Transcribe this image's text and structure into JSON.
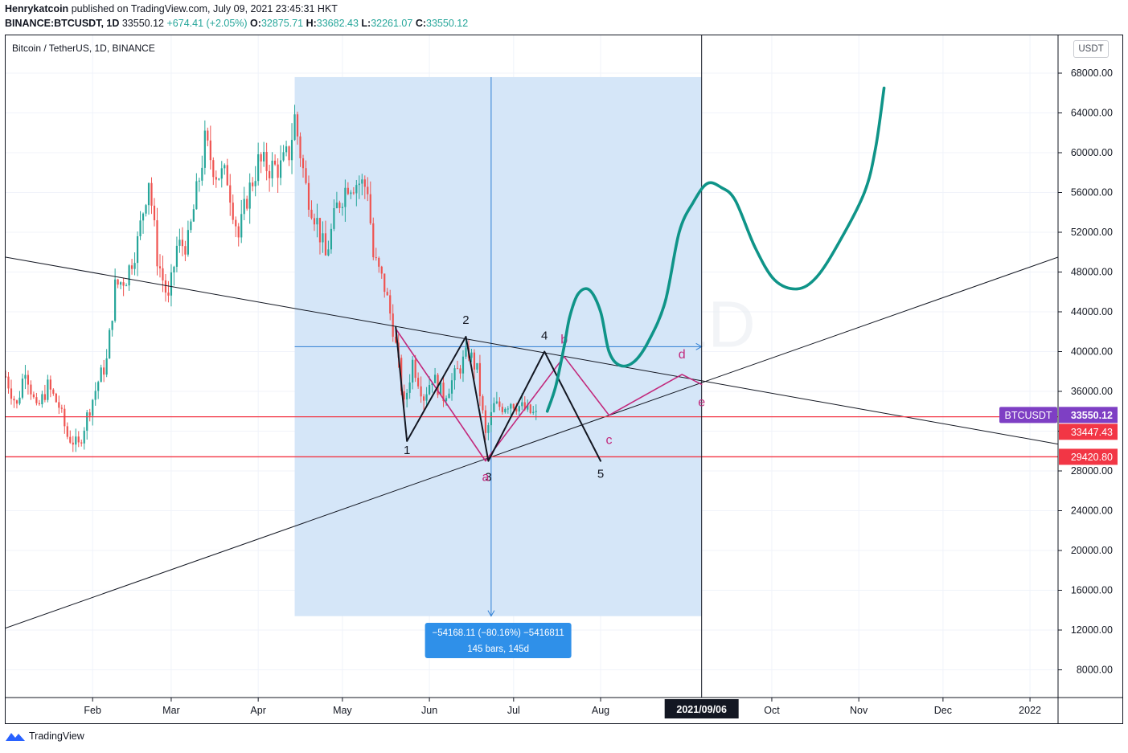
{
  "header": {
    "author": "Henrykatcoin",
    "published": "published on TradingView.com, July 09, 2021 23:45:31 HKT",
    "symbol": "BINANCE:BTCUSDT, 1D",
    "last": "33550.12",
    "change": "+674.41 (+2.05%)",
    "open_label": "O:",
    "open": "32875.71",
    "high_label": "H:",
    "high": "33682.43",
    "low_label": "L:",
    "low": "32261.07",
    "close_label": "C:",
    "close": "33550.12"
  },
  "legend": "Bitcoin / TetherUS, 1D, BINANCE",
  "currency": "USDT",
  "watermark": {
    "big": "BTCUSDT, 1D",
    "small": "Bitcoin / TetherUS"
  },
  "branding": "TradingView",
  "colors": {
    "up": "#26a69a",
    "down": "#ef5350",
    "teal": "#0f9488",
    "magenta": "#c2297c",
    "red_line": "#f23645",
    "range_fill": "#d3e5f8",
    "range_line": "#2f7fd4",
    "label_purple": "#7e3fc4",
    "label_red": "#f23645"
  },
  "chart_data": {
    "type": "candlestick",
    "title": "Bitcoin / TetherUS, 1D, BINANCE",
    "ylabel": "USDT",
    "ylim": [
      4000,
      72000
    ],
    "y_ticks": [
      "68000.00",
      "64000.00",
      "60000.00",
      "56000.00",
      "52000.00",
      "48000.00",
      "44000.00",
      "40000.00",
      "36000.00",
      "32000.00",
      "28000.00",
      "24000.00",
      "20000.00",
      "16000.00",
      "12000.00",
      "8000.00"
    ],
    "x_ticks": [
      "Feb",
      "Mar",
      "Apr",
      "May",
      "Jun",
      "Jul",
      "Aug",
      "Oct",
      "Nov",
      "Dec",
      "2022"
    ],
    "x_ticks_dates": [
      "2021-02-01",
      "2021-03-01",
      "2021-04-01",
      "2021-05-01",
      "2021-06-01",
      "2021-07-01",
      "2021-08-01",
      "2021-10-01",
      "2021-11-01",
      "2021-12-01",
      "2022-01-01"
    ],
    "xlim": [
      "2021-01-01",
      "2022-01-11"
    ],
    "crosshair_date_label": "2021/09/06",
    "crosshair_date": "2021-09-06",
    "close_series": [
      [
        "2021-01-01",
        37500
      ],
      [
        "2021-01-05",
        34500
      ],
      [
        "2021-01-08",
        38500
      ],
      [
        "2021-01-12",
        34000
      ],
      [
        "2021-01-16",
        36500
      ],
      [
        "2021-01-20",
        34500
      ],
      [
        "2021-01-23",
        31500
      ],
      [
        "2021-01-27",
        30500
      ],
      [
        "2021-01-30",
        33500
      ],
      [
        "2021-02-03",
        37000
      ],
      [
        "2021-02-06",
        39000
      ],
      [
        "2021-02-09",
        46500
      ],
      [
        "2021-02-13",
        47500
      ],
      [
        "2021-02-17",
        51000
      ],
      [
        "2021-02-21",
        57500
      ],
      [
        "2021-02-24",
        49500
      ],
      [
        "2021-02-28",
        45000
      ],
      [
        "2021-03-03",
        50500
      ],
      [
        "2021-03-07",
        51000
      ],
      [
        "2021-03-11",
        57500
      ],
      [
        "2021-03-13",
        61000
      ],
      [
        "2021-03-17",
        58000
      ],
      [
        "2021-03-21",
        57500
      ],
      [
        "2021-03-25",
        51500
      ],
      [
        "2021-03-28",
        55500
      ],
      [
        "2021-04-01",
        59000
      ],
      [
        "2021-04-05",
        58500
      ],
      [
        "2021-04-09",
        58500
      ],
      [
        "2021-04-12",
        60000
      ],
      [
        "2021-04-14",
        63500
      ],
      [
        "2021-04-18",
        56500
      ],
      [
        "2021-04-22",
        53000
      ],
      [
        "2021-04-25",
        49500
      ],
      [
        "2021-04-29",
        54500
      ],
      [
        "2021-05-03",
        57000
      ],
      [
        "2021-05-07",
        57000
      ],
      [
        "2021-05-10",
        56500
      ],
      [
        "2021-05-12",
        49500
      ],
      [
        "2021-05-16",
        46500
      ],
      [
        "2021-05-19",
        42500
      ],
      [
        "2021-05-23",
        34500
      ],
      [
        "2021-05-26",
        39000
      ],
      [
        "2021-05-30",
        35500
      ],
      [
        "2021-06-02",
        37500
      ],
      [
        "2021-06-06",
        35500
      ],
      [
        "2021-06-09",
        37000
      ],
      [
        "2021-06-13",
        39000
      ],
      [
        "2021-06-15",
        40000
      ],
      [
        "2021-06-18",
        38000
      ],
      [
        "2021-06-21",
        31500
      ],
      [
        "2021-06-24",
        34500
      ],
      [
        "2021-06-27",
        34500
      ],
      [
        "2021-06-30",
        35000
      ],
      [
        "2021-07-03",
        34500
      ],
      [
        "2021-07-06",
        34000
      ],
      [
        "2021-07-09",
        33550.12
      ]
    ],
    "horizontal_levels": [
      33550.12,
      33447.43,
      29420.8
    ],
    "price_labels": [
      {
        "text": "BTCUSDT",
        "value": "33550.12"
      },
      {
        "text": "",
        "value": "33447.43"
      },
      {
        "text": "",
        "value": "29420.80"
      }
    ],
    "measure": {
      "from_date": "2021-04-14",
      "to_date": "2021-09-06",
      "top": 67600,
      "bottom": 13400,
      "text1": "−54168.11 (−80.16%) −5416811",
      "text2": "145 bars, 145d"
    },
    "trendlines": [
      {
        "name": "descending",
        "points": [
          [
            "2021-01-01",
            49500
          ],
          [
            "2022-01-11",
            30700
          ]
        ]
      },
      {
        "name": "ascending",
        "points": [
          [
            "2021-01-01",
            12200
          ],
          [
            "2022-01-11",
            49500
          ]
        ]
      }
    ],
    "wave_black": {
      "points": [
        [
          "2021-05-20",
          42500
        ],
        [
          "2021-05-24",
          31000
        ],
        [
          "2021-06-14",
          41500
        ],
        [
          "2021-06-22",
          29000
        ],
        [
          "2021-07-12",
          40000
        ],
        [
          "2021-08-01",
          29000
        ]
      ],
      "labels": [
        [
          "1",
          "2021-05-24",
          29700
        ],
        [
          "2",
          "2021-06-14",
          42800
        ],
        [
          "3",
          "2021-06-22",
          27000
        ],
        [
          "4",
          "2021-07-12",
          41200
        ],
        [
          "5",
          "2021-08-01",
          27300
        ]
      ]
    },
    "wave_magenta": {
      "points": [
        [
          "2021-05-20",
          42300
        ],
        [
          "2021-06-21",
          29000
        ],
        [
          "2021-07-19",
          39500
        ],
        [
          "2021-08-04",
          33600
        ],
        [
          "2021-08-30",
          37700
        ],
        [
          "2021-09-06",
          36700
        ]
      ],
      "labels": [
        [
          "a",
          "2021-06-21",
          27000
        ],
        [
          "b",
          "2021-07-19",
          40800
        ],
        [
          "c",
          "2021-08-04",
          30700
        ],
        [
          "d",
          "2021-08-30",
          39300
        ],
        [
          "e",
          "2021-09-06",
          34500
        ]
      ]
    },
    "projection_teal": [
      [
        "2021-07-13",
        34000
      ],
      [
        "2021-07-16",
        36500
      ],
      [
        "2021-07-19",
        40500
      ],
      [
        "2021-07-21",
        43500
      ],
      [
        "2021-07-24",
        45800
      ],
      [
        "2021-07-28",
        46200
      ],
      [
        "2021-08-01",
        44000
      ],
      [
        "2021-08-04",
        40000
      ],
      [
        "2021-08-08",
        38600
      ],
      [
        "2021-08-13",
        39000
      ],
      [
        "2021-08-18",
        41000
      ],
      [
        "2021-08-24",
        45000
      ],
      [
        "2021-08-29",
        52000
      ],
      [
        "2021-09-03",
        55000
      ],
      [
        "2021-09-08",
        56900
      ],
      [
        "2021-09-13",
        56500
      ],
      [
        "2021-09-18",
        55200
      ],
      [
        "2021-09-25",
        50500
      ],
      [
        "2021-10-02",
        47200
      ],
      [
        "2021-10-10",
        46300
      ],
      [
        "2021-10-17",
        47500
      ],
      [
        "2021-10-25",
        51000
      ],
      [
        "2021-11-03",
        56000
      ],
      [
        "2021-11-07",
        60500
      ],
      [
        "2021-11-10",
        66500
      ]
    ]
  }
}
